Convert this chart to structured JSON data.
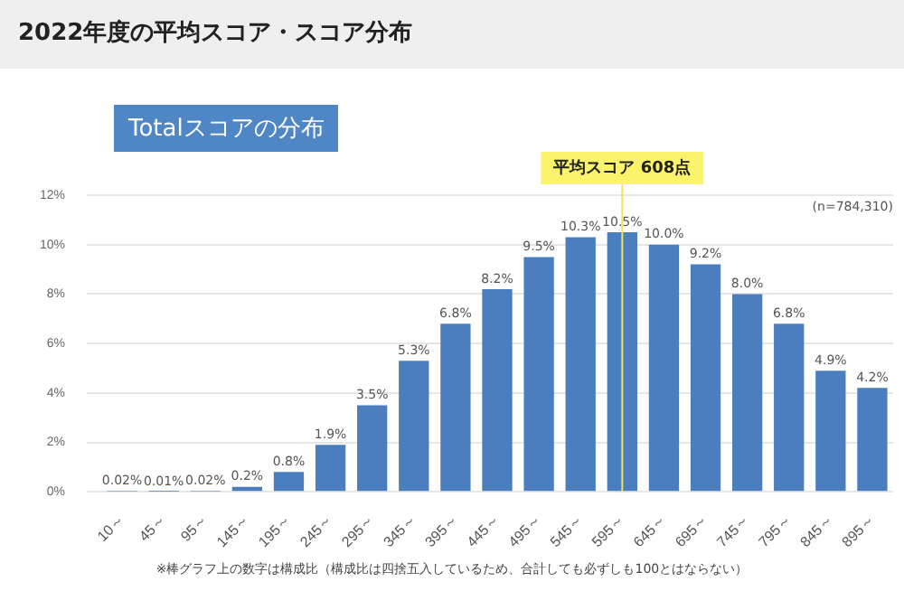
{
  "chart_data": {
    "type": "bar",
    "title": "2022年度の平均スコア・スコア分布",
    "subtitle": "Totalスコアの分布",
    "categories": [
      "10～",
      "45～",
      "95～",
      "145～",
      "195～",
      "245～",
      "295～",
      "345～",
      "395～",
      "445～",
      "495～",
      "545～",
      "595～",
      "645～",
      "695～",
      "745～",
      "795～",
      "845～",
      "895～"
    ],
    "series": [
      {
        "color": "#4a7ebf",
        "values": [
          0.02,
          0.01,
          0.02,
          0.2,
          0.8,
          1.9,
          3.5,
          5.3,
          6.8,
          8.2,
          9.5,
          10.3,
          10.5,
          10.0,
          9.2,
          8.0,
          6.8,
          4.9,
          4.2
        ],
        "value_labels": [
          "0.02%",
          "0.01%",
          "0.02%",
          "0.2%",
          "0.8%",
          "1.9%",
          "3.5%",
          "5.3%",
          "6.8%",
          "8.2%",
          "9.5%",
          "10.3%",
          "10.5%",
          "10.0%",
          "9.2%",
          "8.0%",
          "6.8%",
          "4.9%",
          "4.2%"
        ]
      }
    ],
    "ylim": [
      0,
      12
    ],
    "yticks": [
      {
        "value": 0,
        "label": "0%"
      },
      {
        "value": 2,
        "label": "2%"
      },
      {
        "value": 4,
        "label": "4%"
      },
      {
        "value": 6,
        "label": "6%"
      },
      {
        "value": 8,
        "label": "8%"
      },
      {
        "value": 10,
        "label": "10%"
      },
      {
        "value": 12,
        "label": "12%"
      }
    ],
    "grid": "y",
    "legend": false,
    "ref_lines": [
      {
        "axis": "x",
        "value": "595～",
        "label": "平均スコア 608点",
        "color": "#f0e45a"
      }
    ],
    "annotations": [
      "(n=784,310)",
      "※棒グラフ上の数字は構成比（構成比は四捨五入しているため、合計しても必ずしも100とはならない）"
    ]
  }
}
